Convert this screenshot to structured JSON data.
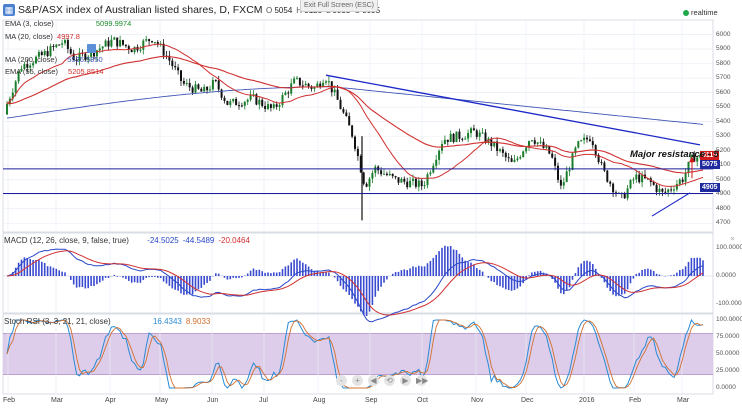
{
  "header": {
    "symbol_icon": "chart-symbol-icon",
    "title": "S&P/ASX index of Australian listed shares, D, FXCM",
    "ohlc": [
      {
        "k": "O",
        "v": "5054"
      },
      {
        "k": "H",
        "v": "5128"
      },
      {
        "k": "L",
        "v": "5033"
      },
      {
        "k": "C",
        "v": "5095"
      }
    ],
    "exit_fullscreen": "Exit Full Screen (ESC)",
    "realtime": "realtime"
  },
  "legend": {
    "ema3": {
      "label": "EMA (3, close)",
      "value": "5099.9974",
      "color": "#1d8c2e"
    },
    "ma20": {
      "label": "MA (20, close)",
      "value": "4997.8",
      "color": "#d03030"
    },
    "ma200": {
      "label": "MA (200, close)",
      "value": "5536.5850",
      "color": "#3f55b5"
    },
    "ema55": {
      "label": "EMA (55, close)",
      "value": "5205.8514",
      "color": "#d03030"
    }
  },
  "price_axis": [
    "6000",
    "5900",
    "5800",
    "5700",
    "5600",
    "5500",
    "5400",
    "5300",
    "5200",
    "5100",
    "5000",
    "4900",
    "4800",
    "4700"
  ],
  "tags": {
    "upper": {
      "value": "5110",
      "color": "#d11b1b"
    },
    "mid": {
      "value": "5075",
      "color": "#1f2a9e"
    },
    "lower": {
      "value": "4905",
      "color": "#1f2a9e"
    }
  },
  "annotation": "Major resistance - 5",
  "macd": {
    "label": "MACD (12, 26, close, 9, false, true)",
    "values": [
      {
        "v": "-24.5025",
        "color": "#2a48c8"
      },
      {
        "v": "-44.5489",
        "color": "#2a48c8"
      },
      {
        "v": "-20.0464",
        "color": "#d03030"
      }
    ],
    "axis": [
      "100.0000",
      "0.0000",
      "-100.0000"
    ]
  },
  "stoch": {
    "label": "Stoch RSI (3, 3, 21, 21, close)",
    "values": [
      {
        "v": "16.4343",
        "color": "#2a8ad4"
      },
      {
        "v": "8.9033",
        "color": "#d07030"
      }
    ],
    "axis": [
      "100.0000",
      "75.0000",
      "50.0000",
      "25.0000",
      "0.0000"
    ]
  },
  "months": [
    "Feb",
    "Mar",
    "Apr",
    "May",
    "Jun",
    "Jul",
    "Aug",
    "Sep",
    "Oct",
    "Nov",
    "Dec",
    "2016",
    "Feb",
    "Mar"
  ],
  "nav": [
    "-",
    "+",
    "◀",
    "⟲",
    "▶",
    "▶▶"
  ],
  "colors": {
    "bull": "#1a7d2c",
    "bear": "#111111",
    "trend": "#1c28c8",
    "hline": "#1c1c9c",
    "grid": "#e9eef6"
  }
}
